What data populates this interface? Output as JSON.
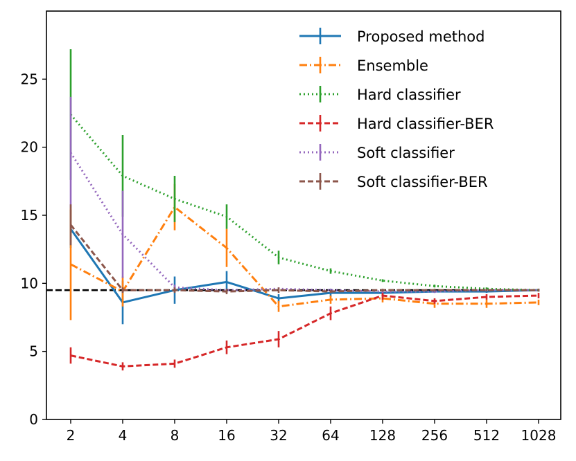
{
  "chart_data": {
    "type": "line",
    "x": [
      "2",
      "4",
      "8",
      "16",
      "32",
      "64",
      "128",
      "256",
      "512",
      "1028"
    ],
    "ylim": [
      0,
      30
    ],
    "yticks": [
      "0",
      "5",
      "10",
      "15",
      "20",
      "25"
    ],
    "reference_line": 9.5,
    "reference_color": "#000000",
    "legend_position": "top-right",
    "grid": false,
    "series": [
      {
        "name": "Proposed method",
        "color": "#1f77b4",
        "dash": "solid",
        "values": [
          14.0,
          8.6,
          9.5,
          10.1,
          8.9,
          9.3,
          9.3,
          9.4,
          9.4,
          9.5
        ],
        "errors": [
          1.4,
          1.6,
          1.0,
          0.8,
          0.3,
          0.3,
          0.2,
          0.1,
          0.1,
          0.1
        ]
      },
      {
        "name": "Ensemble",
        "color": "#ff7f0e",
        "dash": "dashdot",
        "values": [
          11.4,
          9.4,
          15.6,
          12.6,
          8.3,
          8.8,
          8.9,
          8.5,
          8.5,
          8.6
        ],
        "errors": [
          4.1,
          1.1,
          1.7,
          1.4,
          0.4,
          0.3,
          0.3,
          0.3,
          0.3,
          0.2
        ]
      },
      {
        "name": "Hard classifier",
        "color": "#2ca02c",
        "dash": "dotted",
        "values": [
          22.4,
          17.9,
          16.2,
          14.9,
          11.9,
          10.9,
          10.2,
          9.8,
          9.6,
          9.5
        ],
        "errors": [
          4.8,
          3.0,
          1.7,
          0.9,
          0.5,
          0.2,
          0.1,
          0.1,
          0.1,
          0.1
        ]
      },
      {
        "name": "Hard classifier-BER",
        "color": "#d62728",
        "dash": "dashed",
        "values": [
          4.7,
          3.9,
          4.1,
          5.3,
          5.9,
          7.8,
          9.1,
          8.7,
          9.0,
          9.1
        ],
        "errors": [
          0.6,
          0.3,
          0.3,
          0.5,
          0.6,
          0.5,
          0.3,
          0.2,
          0.2,
          0.2
        ]
      },
      {
        "name": "Soft classifier",
        "color": "#9467bd",
        "dash": "dotted",
        "values": [
          19.6,
          13.6,
          9.7,
          9.5,
          9.6,
          9.5,
          9.4,
          9.4,
          9.5,
          9.5
        ],
        "errors": [
          4.1,
          3.2,
          0.2,
          0.1,
          0.1,
          0.1,
          0.1,
          0.1,
          0.1,
          0.1
        ]
      },
      {
        "name": "Soft classifier-BER",
        "color": "#8c564b",
        "dash": "dashed",
        "values": [
          14.3,
          9.5,
          9.5,
          9.4,
          9.5,
          9.4,
          9.5,
          9.5,
          9.5,
          9.5
        ],
        "errors": [
          1.5,
          0.2,
          0.2,
          0.2,
          0.2,
          0.1,
          0.1,
          0.1,
          0.1,
          0.1
        ]
      }
    ]
  }
}
